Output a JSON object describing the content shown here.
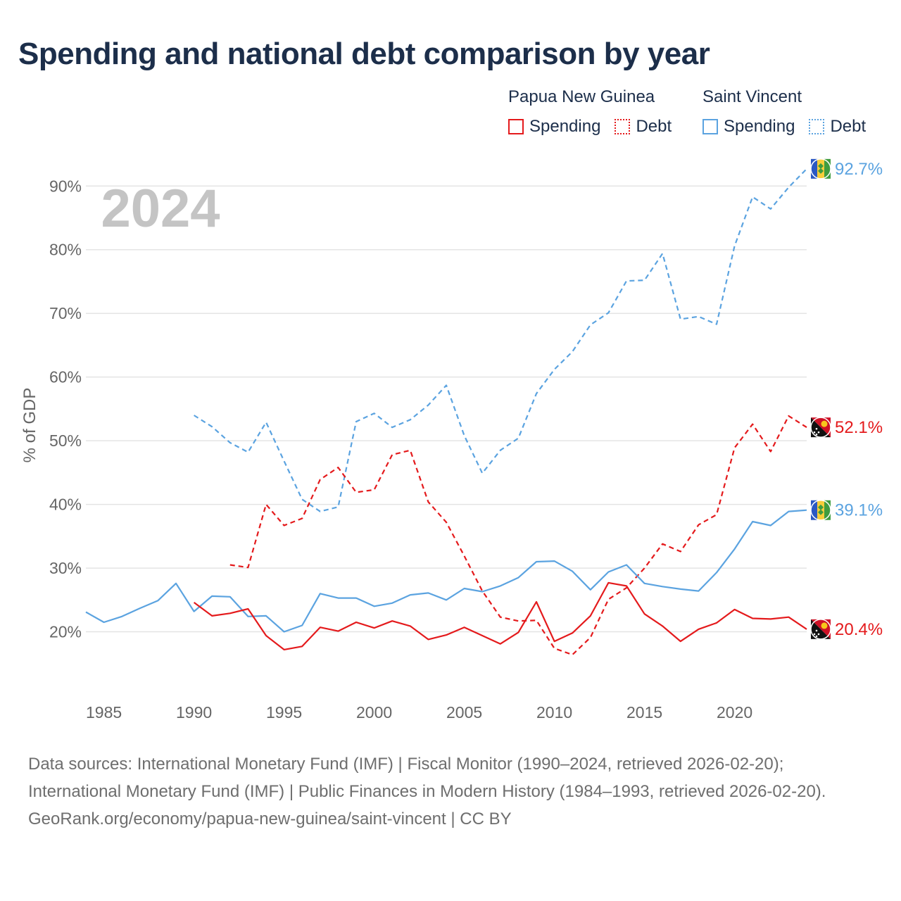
{
  "title": "Spending and national debt comparison by year",
  "legend": {
    "groups": [
      {
        "name": "Papua New Guinea",
        "items": [
          "Spending",
          "Debt"
        ],
        "color": "#e41a1c"
      },
      {
        "name": "Saint Vincent",
        "items": [
          "Spending",
          "Debt"
        ],
        "color": "#5ba3e0"
      }
    ]
  },
  "chart_data": {
    "type": "line",
    "year_label": "2024",
    "ylabel": "% of GDP",
    "xlim": [
      1984,
      2024
    ],
    "ylim": [
      10,
      96
    ],
    "x_ticks": [
      1985,
      1990,
      1995,
      2000,
      2005,
      2010,
      2015,
      2020
    ],
    "y_ticks": [
      20,
      30,
      40,
      50,
      60,
      70,
      80,
      90
    ],
    "y_tick_labels": [
      "20%",
      "30%",
      "40%",
      "50%",
      "60%",
      "70%",
      "80%",
      "90%"
    ],
    "series": [
      {
        "name": "Saint Vincent Debt",
        "country": "Saint Vincent",
        "measure": "Debt",
        "color": "#5ba3e0",
        "dashed": true,
        "start_year": 1990,
        "values": [
          54.0,
          52.2,
          49.7,
          48.2,
          52.9,
          46.8,
          40.8,
          38.9,
          39.6,
          53.0,
          54.3,
          52.1,
          53.3,
          55.6,
          58.7,
          50.8,
          44.9,
          48.5,
          50.4,
          57.4,
          61.2,
          64.0,
          68.2,
          70.1,
          75.1,
          75.2,
          79.4,
          69.1,
          69.5,
          68.3,
          80.6,
          88.3,
          86.4,
          89.8,
          92.7
        ],
        "end_label": "92.7%"
      },
      {
        "name": "Papua New Guinea Debt",
        "country": "Papua New Guinea",
        "measure": "Debt",
        "color": "#e41a1c",
        "dashed": true,
        "start_year": 1992,
        "values": [
          30.5,
          30.1,
          40.0,
          36.7,
          37.8,
          43.9,
          45.8,
          41.9,
          42.3,
          47.8,
          48.5,
          40.4,
          37.2,
          31.9,
          26.4,
          22.3,
          21.7,
          21.8,
          17.4,
          16.4,
          19.1,
          25.1,
          26.9,
          30.0,
          33.8,
          32.6,
          36.8,
          38.4,
          48.9,
          52.6,
          48.3,
          53.9,
          52.1
        ],
        "end_label": "52.1%"
      },
      {
        "name": "Saint Vincent Spending",
        "country": "Saint Vincent",
        "measure": "Spending",
        "color": "#5ba3e0",
        "dashed": false,
        "start_year": 1984,
        "values": [
          23.1,
          21.5,
          22.4,
          23.7,
          24.9,
          27.6,
          23.2,
          25.6,
          25.5,
          22.4,
          22.5,
          20.0,
          21.0,
          26.0,
          25.3,
          25.3,
          24.0,
          24.5,
          25.8,
          26.1,
          25.0,
          26.8,
          26.3,
          27.2,
          28.5,
          31.0,
          31.1,
          29.5,
          26.6,
          29.4,
          30.5,
          27.6,
          27.1,
          26.7,
          26.4,
          29.3,
          33.0,
          37.3,
          36.7,
          38.9,
          39.1
        ],
        "end_label": "39.1%"
      },
      {
        "name": "Papua New Guinea Spending",
        "country": "Papua New Guinea",
        "measure": "Spending",
        "color": "#e41a1c",
        "dashed": false,
        "start_year": 1990,
        "values": [
          24.6,
          22.5,
          22.9,
          23.6,
          19.4,
          17.2,
          17.7,
          20.7,
          20.1,
          21.5,
          20.6,
          21.7,
          20.9,
          18.8,
          19.5,
          20.7,
          19.4,
          18.1,
          19.9,
          24.7,
          18.5,
          19.8,
          22.5,
          27.7,
          27.2,
          22.8,
          20.9,
          18.5,
          20.4,
          21.4,
          23.5,
          22.1,
          22.0,
          22.3,
          20.4
        ],
        "end_label": "20.4%"
      }
    ]
  },
  "footer": {
    "sources": "Data sources: International Monetary Fund (IMF) | Fiscal Monitor (1990–2024, retrieved 2026-02-20); International Monetary Fund (IMF) | Public Finances in Modern History (1984–1993, retrieved 2026-02-20).",
    "credit": "GeoRank.org/economy/papua-new-guinea/saint-vincent | CC BY"
  }
}
